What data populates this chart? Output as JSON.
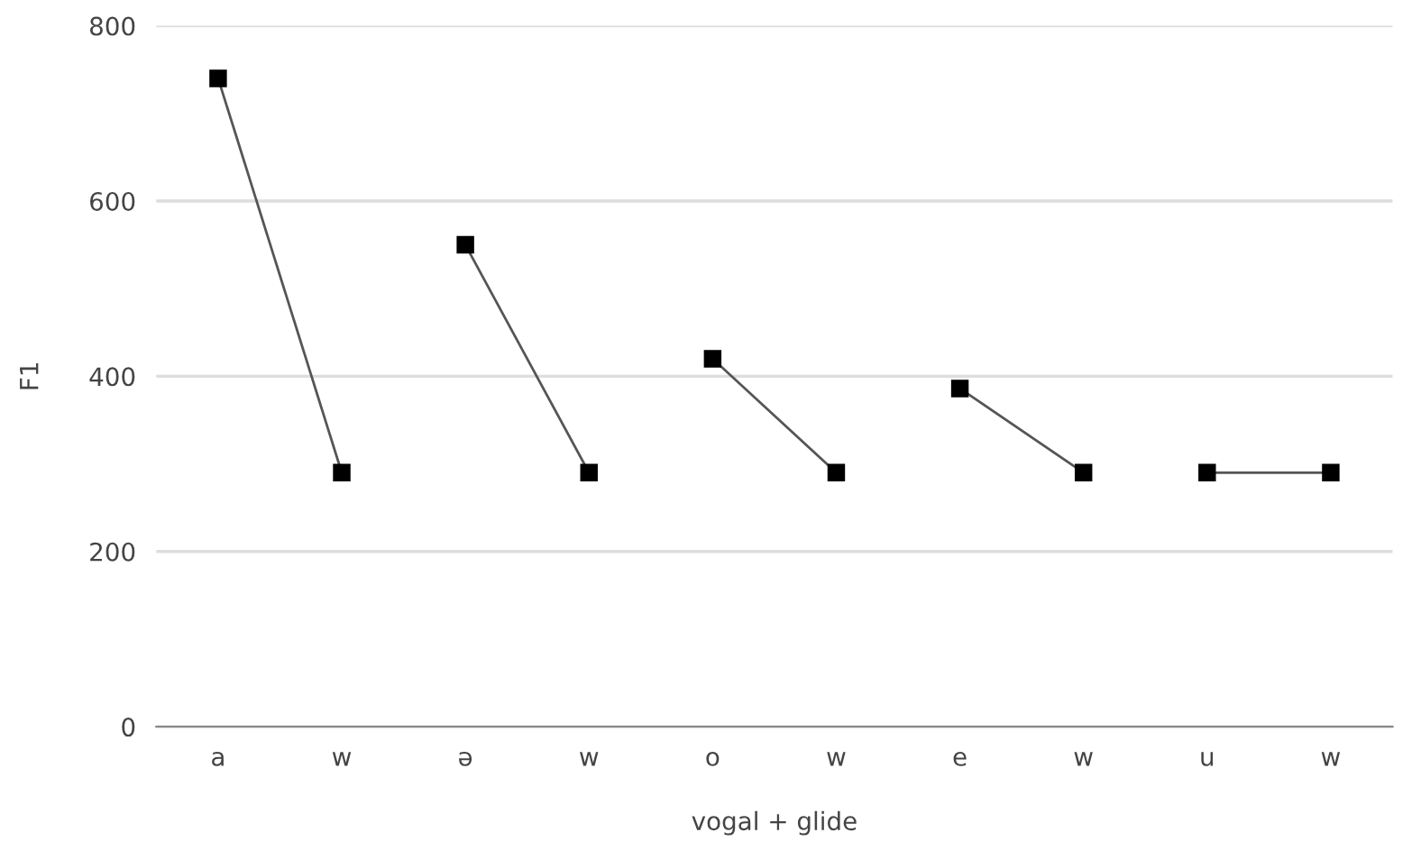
{
  "chart_data": {
    "type": "line",
    "xlabel": "vogal + glide",
    "ylabel": "F1",
    "categories": [
      "a",
      "w",
      "ə",
      "w",
      "o",
      "w",
      "e",
      "w",
      "u",
      "w"
    ],
    "series": [
      {
        "color": "#000000",
        "values": [
          740,
          290,
          null,
          null,
          null,
          null,
          null,
          null,
          null,
          null
        ]
      },
      {
        "color": "#000000",
        "values": [
          null,
          null,
          550,
          290,
          null,
          null,
          null,
          null,
          null,
          null
        ]
      },
      {
        "color": "#000000",
        "values": [
          null,
          null,
          null,
          null,
          420,
          290,
          null,
          null,
          null,
          null
        ]
      },
      {
        "color": "#000000",
        "values": [
          null,
          null,
          null,
          null,
          null,
          null,
          386,
          290,
          null,
          null
        ]
      },
      {
        "color": "#000000",
        "values": [
          null,
          null,
          null,
          null,
          null,
          null,
          null,
          null,
          290,
          290
        ]
      }
    ],
    "ylim": [
      0,
      800
    ],
    "yticks": [
      0,
      200,
      400,
      600,
      800
    ],
    "grid": "y",
    "marker": "square",
    "line_style": "solid",
    "legend": false
  }
}
